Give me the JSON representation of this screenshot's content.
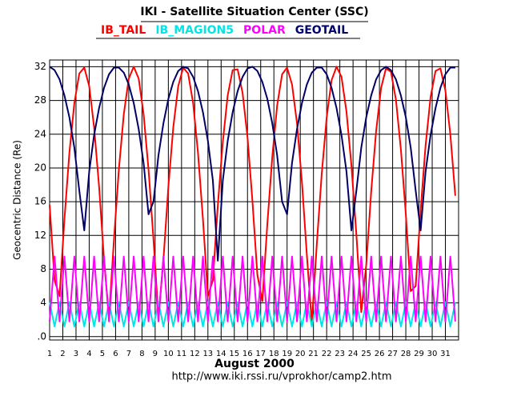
{
  "chart_data": {
    "type": "line",
    "title": "IKI - Satellite Situation Center (SSC)",
    "xlabel": "August   2000",
    "ylabel": "Geocentric Distance (Re)",
    "footer": "http://www.iki.rssi.ru/vprokhor/camp2.htm",
    "x": [
      1,
      1.375,
      1.75,
      2.125,
      2.5,
      2.875,
      3.25,
      3.625,
      4,
      4.375,
      4.75,
      5.125,
      5.5,
      5.875,
      6.25,
      6.625,
      7,
      7.375,
      7.75,
      8.125,
      8.5,
      8.875,
      9.25,
      9.625,
      10,
      10.375,
      10.75,
      11.125,
      11.5,
      11.875,
      12.25,
      12.625,
      13,
      13.375,
      13.75,
      14.125,
      14.5,
      14.875,
      15.25,
      15.625,
      16,
      16.375,
      16.75,
      17.125,
      17.5,
      17.875,
      18.25,
      18.625,
      19,
      19.375,
      19.75,
      20.125,
      20.5,
      20.875,
      21.25,
      21.625,
      22,
      22.375,
      22.75,
      23.125,
      23.5,
      23.875,
      24.25,
      24.625,
      25,
      25.375,
      25.75,
      26.125,
      26.5,
      26.875,
      27.25,
      27.625,
      28,
      28.375,
      28.75,
      29.125,
      29.5,
      29.875,
      30.25,
      30.625,
      31,
      31.375,
      31.75
    ],
    "series": [
      {
        "name": "IB_TAIL",
        "color": "#ff0000",
        "values": [
          15.6,
          6.7,
          4.8,
          13.9,
          21.8,
          27.7,
          31.2,
          31.9,
          29.7,
          24.8,
          17.8,
          9.1,
          2.3,
          11.5,
          19.8,
          26.4,
          30.6,
          32.0,
          30.6,
          26.4,
          19.8,
          11.5,
          2.3,
          9.1,
          17.8,
          24.8,
          29.7,
          31.9,
          31.2,
          27.7,
          21.8,
          13.9,
          4.8,
          6.7,
          15.6,
          23.1,
          28.6,
          31.6,
          31.7,
          28.9,
          23.6,
          16.1,
          7.3,
          4.2,
          13.3,
          21.3,
          27.4,
          31.1,
          31.9,
          29.9,
          25.3,
          18.3,
          9.7,
          1.6,
          10.9,
          19.3,
          26.0,
          30.4,
          32.0,
          30.8,
          26.7,
          20.3,
          12.1,
          2.9,
          8.5,
          17.2,
          24.4,
          29.5,
          31.8,
          31.4,
          28.1,
          22.2,
          14.5,
          5.4,
          6.0,
          15.0,
          22.7,
          28.4,
          31.5,
          31.8,
          29.2,
          24.0,
          16.7
        ]
      },
      {
        "name": "IB_MAGION5",
        "color": "#00e5e5",
        "values": [
          4.1,
          1.2,
          4.1,
          1.2,
          4.1,
          1.2,
          4.1,
          1.2,
          4.1,
          1.2,
          4.1,
          1.2,
          4.1,
          1.2,
          4.1,
          1.2,
          4.1,
          1.2,
          4.1,
          1.2,
          4.1,
          1.2,
          4.1,
          1.2,
          4.1,
          1.2,
          4.1,
          1.2,
          4.1,
          1.2,
          4.1,
          1.2,
          4.1,
          1.2,
          4.1,
          1.2,
          4.1,
          1.2,
          4.1,
          1.2,
          4.1,
          1.2,
          4.1,
          1.2,
          4.1,
          1.2,
          4.1,
          1.2,
          4.1,
          1.2,
          4.1,
          1.2,
          4.1,
          1.2,
          4.1,
          1.2,
          4.1,
          1.2,
          4.1,
          1.2,
          4.1,
          1.2,
          4.1,
          1.2,
          4.1,
          1.2,
          4.1,
          1.2,
          4.1,
          1.2,
          4.1,
          1.2,
          4.1,
          1.2,
          4.1,
          1.2,
          4.1,
          1.2,
          4.1,
          1.2,
          4.1,
          1.2,
          4.1
        ]
      },
      {
        "name": "POLAR",
        "color": "#ff00ff",
        "values": [
          1.8,
          9.5,
          1.8,
          9.5,
          1.8,
          9.5,
          1.8,
          9.5,
          1.8,
          9.5,
          1.8,
          9.5,
          1.8,
          9.5,
          1.8,
          9.5,
          1.8,
          9.5,
          1.8,
          9.5,
          1.8,
          9.5,
          1.8,
          9.5,
          1.8,
          9.5,
          1.8,
          9.5,
          1.8,
          9.5,
          1.8,
          9.5,
          1.8,
          9.5,
          1.8,
          9.5,
          1.8,
          9.5,
          1.8,
          9.5,
          1.8,
          9.5,
          1.8,
          9.5,
          1.8,
          9.5,
          1.8,
          9.5,
          1.8,
          9.5,
          1.8,
          9.5,
          1.8,
          9.5,
          1.8,
          9.5,
          1.8,
          9.5,
          1.8,
          9.5,
          1.8,
          9.5,
          1.8,
          9.5,
          1.8,
          9.5,
          1.8,
          9.5,
          1.8,
          9.5,
          1.8,
          9.5,
          1.8,
          9.5,
          1.8,
          9.5,
          1.8,
          9.5,
          1.8,
          9.5,
          1.8,
          9.5,
          1.8
        ]
      },
      {
        "name": "GEOTAIL",
        "color": "#000066",
        "values": [
          32.0,
          31.6,
          30.5,
          28.6,
          26.0,
          22.4,
          17.3,
          12.6,
          19.6,
          23.9,
          27.1,
          29.5,
          31.1,
          31.9,
          31.9,
          31.3,
          29.9,
          27.7,
          24.6,
          20.6,
          14.5,
          16.0,
          21.5,
          25.3,
          28.2,
          30.2,
          31.5,
          32.0,
          31.8,
          30.8,
          29.1,
          26.6,
          23.2,
          18.5,
          9.0,
          18.5,
          23.2,
          26.6,
          29.1,
          30.8,
          31.8,
          32.0,
          31.5,
          30.2,
          28.2,
          25.3,
          21.5,
          16.0,
          14.5,
          20.6,
          24.6,
          27.7,
          29.9,
          31.3,
          31.9,
          31.9,
          31.1,
          29.5,
          27.1,
          23.9,
          19.6,
          12.6,
          17.3,
          22.4,
          26.0,
          28.6,
          30.5,
          31.6,
          32.0,
          31.6,
          30.5,
          28.6,
          26.0,
          22.4,
          17.3,
          12.6,
          19.6,
          23.9,
          27.1,
          29.5,
          31.1,
          31.9,
          31.9
        ]
      }
    ],
    "xlim": [
      1,
      32
    ],
    "xticks": [
      1,
      2,
      3,
      4,
      5,
      6,
      7,
      8,
      9,
      10,
      11,
      12,
      13,
      14,
      15,
      16,
      17,
      18,
      19,
      20,
      21,
      22,
      23,
      24,
      25,
      26,
      27,
      28,
      29,
      30,
      31
    ],
    "ylim": [
      -0.4,
      32.8
    ],
    "yticks": [
      {
        "value": 0,
        "label": ".0"
      },
      4,
      8,
      12,
      16,
      20,
      24,
      28,
      32
    ],
    "grid": true
  }
}
